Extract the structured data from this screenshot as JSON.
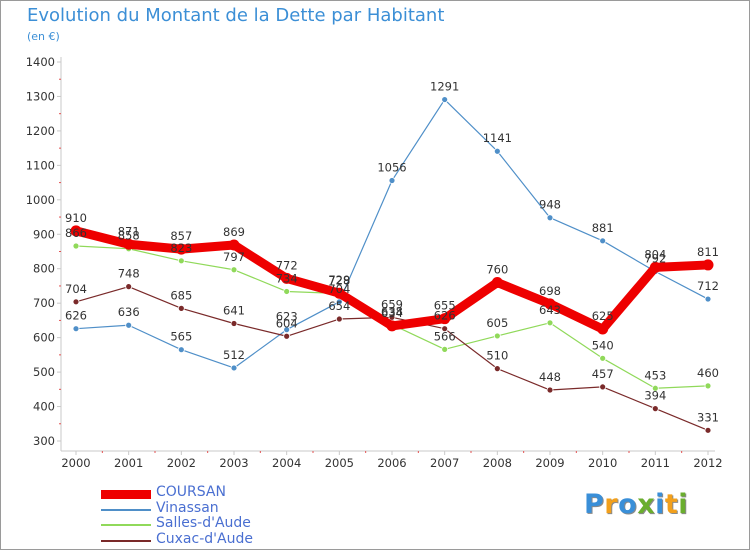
{
  "header": {
    "title": "Evolution du Montant de la Dette par Habitant",
    "unit": "(en €)"
  },
  "logo": {
    "text": "Proxiti",
    "letters": [
      "P",
      "r",
      "o",
      "x",
      "i",
      "t",
      "i"
    ],
    "colors": [
      "#3a8fd8",
      "#f2a01c",
      "#3a8fd8",
      "#6aae2e",
      "#3a8fd8",
      "#f2a01c",
      "#6aae2e"
    ]
  },
  "chart_data": {
    "type": "line",
    "title": "Evolution du Montant de la Dette par Habitant",
    "ylabel": "(en €)",
    "xlabel": "",
    "x": [
      2000,
      2001,
      2002,
      2003,
      2004,
      2005,
      2006,
      2007,
      2008,
      2009,
      2010,
      2011,
      2012
    ],
    "ylim": [
      300,
      1400
    ],
    "yticks": [
      300,
      400,
      500,
      600,
      700,
      800,
      900,
      1000,
      1100,
      1200,
      1300,
      1400
    ],
    "grid": false,
    "legend_position": "bottom-left",
    "series": [
      {
        "name": "COURSAN",
        "color": "#ee0000",
        "values": [
          910,
          871,
          857,
          869,
          772,
          729,
          634,
          655,
          760,
          698,
          625,
          804,
          811
        ]
      },
      {
        "name": "Vinassan",
        "color": "#4f8fc8",
        "values": [
          626,
          636,
          565,
          512,
          623,
          704,
          1056,
          1291,
          1141,
          948,
          881,
          792,
          712
        ]
      },
      {
        "name": "Salles-d'Aude",
        "color": "#90d95a",
        "values": [
          866,
          858,
          823,
          797,
          734,
          728,
          638,
          566,
          605,
          643,
          540,
          453,
          460
        ]
      },
      {
        "name": "Cuxac-d'Aude",
        "color": "#7a2a2a",
        "values": [
          704,
          748,
          685,
          641,
          604,
          654,
          659,
          626,
          510,
          448,
          457,
          394,
          331
        ]
      }
    ]
  }
}
